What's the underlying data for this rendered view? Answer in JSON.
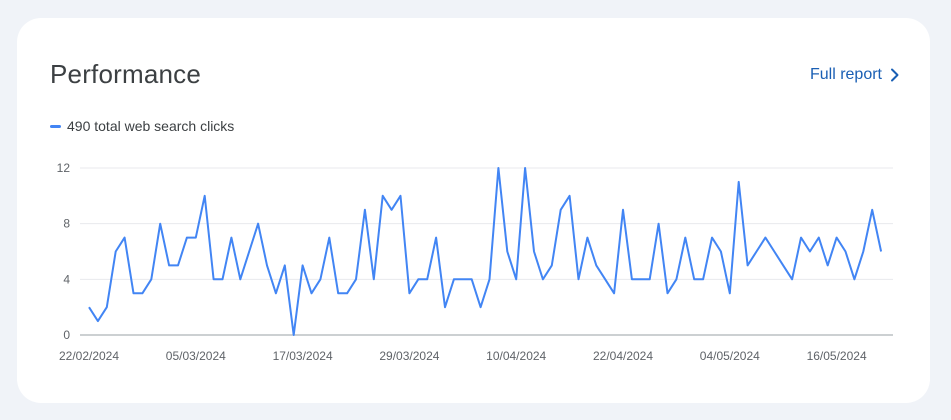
{
  "card": {
    "title": "Performance",
    "full_report_label": "Full report",
    "chevron_icon": "chevron-right-icon",
    "legend_label": "490 total web search clicks"
  },
  "colors": {
    "line": "#4285f4",
    "link": "#1a5fb4",
    "grid": "#e8eaed",
    "axis_text": "#5f6368"
  },
  "chart_data": {
    "type": "line",
    "title": "",
    "xlabel": "",
    "ylabel": "",
    "ylim": [
      0,
      12
    ],
    "yticks": [
      0,
      4,
      8,
      12
    ],
    "grid": true,
    "x_tick_labels": [
      "22/02/2024",
      "05/03/2024",
      "17/03/2024",
      "29/03/2024",
      "10/04/2024",
      "22/04/2024",
      "04/05/2024",
      "16/05/2024"
    ],
    "x_start": "22/02/2024",
    "x_end": "19/05/2024",
    "series": [
      {
        "name": "490 total web search clicks",
        "values": [
          2,
          1,
          2,
          6,
          7,
          3,
          3,
          4,
          8,
          5,
          5,
          7,
          7,
          10,
          4,
          4,
          7,
          4,
          6,
          8,
          5,
          3,
          5,
          0,
          5,
          3,
          4,
          7,
          3,
          3,
          4,
          9,
          4,
          10,
          9,
          10,
          3,
          4,
          4,
          7,
          2,
          4,
          4,
          4,
          2,
          4,
          12,
          6,
          4,
          12,
          6,
          4,
          5,
          9,
          10,
          4,
          7,
          5,
          4,
          3,
          9,
          4,
          4,
          4,
          8,
          3,
          4,
          7,
          4,
          4,
          7,
          6,
          3,
          11,
          5,
          6,
          7,
          6,
          5,
          4,
          7,
          6,
          7,
          5,
          7,
          6,
          4,
          6,
          9,
          6
        ]
      }
    ]
  }
}
